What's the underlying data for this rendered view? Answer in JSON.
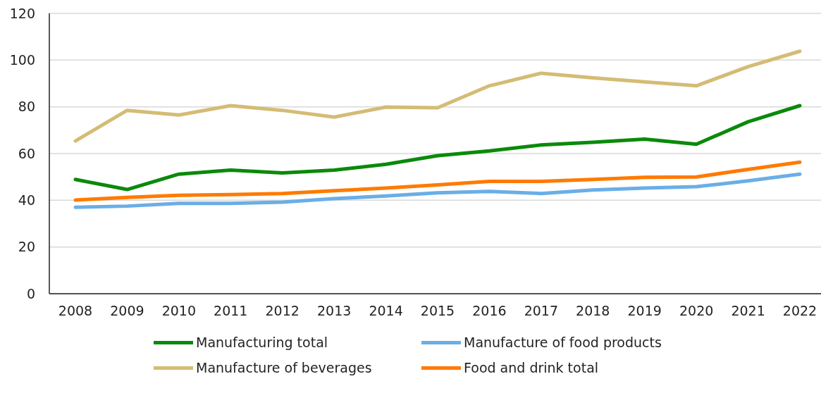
{
  "chart_data": {
    "type": "line",
    "categories": [
      "2008",
      "2009",
      "2010",
      "2011",
      "2012",
      "2013",
      "2014",
      "2015",
      "2016",
      "2017",
      "2018",
      "2019",
      "2020",
      "2021",
      "2022"
    ],
    "series": [
      {
        "name": "Manufacturing total",
        "color": "#0a8a0a",
        "values": [
          48.9,
          44.6,
          51.2,
          52.9,
          51.7,
          52.9,
          55.4,
          59.1,
          61.1,
          63.7,
          64.8,
          66.2,
          64.0,
          73.6,
          80.5
        ]
      },
      {
        "name": "Manufacture of food products",
        "color": "#6aaee6",
        "values": [
          37.0,
          37.5,
          38.7,
          38.7,
          39.2,
          40.7,
          41.8,
          43.2,
          43.8,
          42.9,
          44.4,
          45.2,
          45.8,
          48.3,
          51.2
        ]
      },
      {
        "name": "Manufacture of beverages",
        "color": "#d4bc75",
        "values": [
          65.4,
          78.5,
          76.5,
          80.5,
          78.5,
          75.6,
          79.9,
          79.6,
          89.0,
          94.4,
          92.4,
          90.7,
          89.0,
          97.2,
          103.8
        ]
      },
      {
        "name": "Food and drink total",
        "color": "#ff7a00",
        "values": [
          40.1,
          41.2,
          42.1,
          42.4,
          42.9,
          44.1,
          45.2,
          46.6,
          48.1,
          48.1,
          48.9,
          49.8,
          50.0,
          53.2,
          56.3
        ]
      }
    ],
    "ylim": [
      0,
      120
    ],
    "yticks": [
      0,
      20,
      40,
      60,
      80,
      100,
      120
    ],
    "grid": "y",
    "legend": "bottom",
    "marker": "none",
    "line_style": "solid"
  }
}
